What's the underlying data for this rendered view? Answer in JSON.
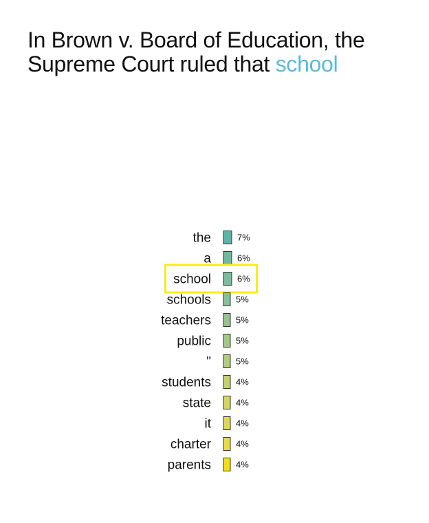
{
  "headline": {
    "prefix": "In Brown v. Board of Education, the Supreme Court ruled that ",
    "highlighted_word": "school"
  },
  "chart_data": {
    "type": "bar",
    "title": "",
    "orientation": "horizontal",
    "categories": [
      "the",
      "a",
      "school",
      "schools",
      "teachers",
      "public",
      "\"",
      "students",
      "state",
      "it",
      "charter",
      "parents"
    ],
    "values": [
      7,
      6,
      6,
      5,
      5,
      5,
      5,
      4,
      4,
      4,
      4,
      4
    ],
    "labels": [
      "7%",
      "6%",
      "6%",
      "5%",
      "5%",
      "5%",
      "5%",
      "4%",
      "4%",
      "4%",
      "4%",
      "4%"
    ],
    "highlighted_category": "school",
    "colors": [
      "#5ab5a8",
      "#6eb9a1",
      "#7bbd9a",
      "#87c194",
      "#94c48d",
      "#a2c985",
      "#b2cd7c",
      "#c5d16d",
      "#d4d560",
      "#e0d755",
      "#ebdb40",
      "#f5df10"
    ],
    "highlight_color": "#f7ec1c",
    "unit": "%"
  }
}
